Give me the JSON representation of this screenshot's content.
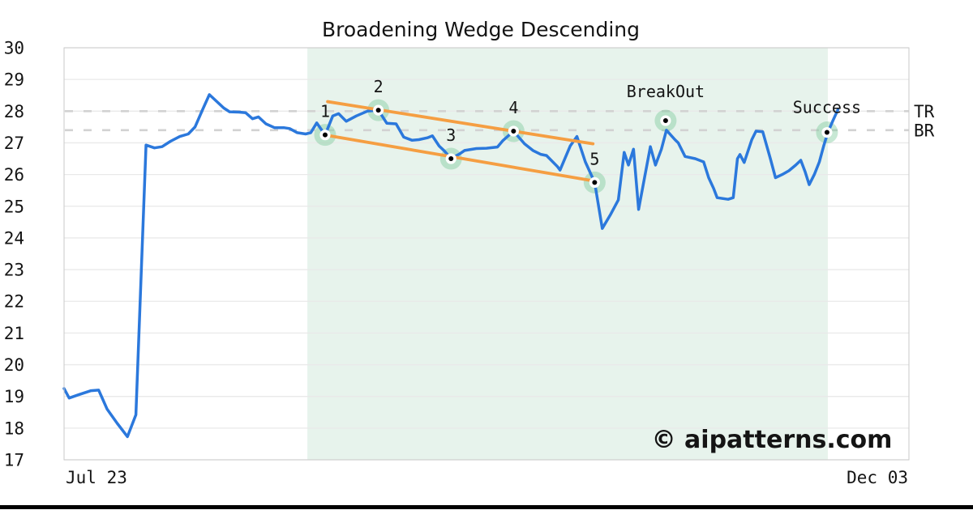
{
  "watermark": "© aipatterns.com",
  "chart_data": {
    "type": "line",
    "title": "Broadening Wedge Descending",
    "ylim": [
      17,
      30
    ],
    "yticks": [
      17,
      18,
      19,
      20,
      21,
      22,
      23,
      24,
      25,
      26,
      27,
      28,
      29,
      30
    ],
    "grid": "horizontal",
    "x_axis": {
      "start_label": "Jul 23",
      "end_label": "Dec 03"
    },
    "levels": [
      {
        "label": "TR",
        "value": 28.0
      },
      {
        "label": "BR",
        "value": 27.4
      }
    ],
    "pattern_zone": {
      "start": 28.8,
      "end": 90.4
    },
    "trendlines": [
      {
        "name": "upper-trendline",
        "from": [
          31.2,
          28.3
        ],
        "to": [
          62.6,
          26.97
        ]
      },
      {
        "name": "lower-trendline",
        "from": [
          30.8,
          27.25
        ],
        "to": [
          62.2,
          25.82
        ]
      }
    ],
    "markers": [
      {
        "label": "1",
        "pos": 30.9,
        "value": 27.25,
        "label_dy": -22
      },
      {
        "label": "2",
        "pos": 37.2,
        "value": 28.03,
        "label_dy": -22
      },
      {
        "label": "3",
        "pos": 45.8,
        "value": 26.5,
        "label_dy": -22
      },
      {
        "label": "4",
        "pos": 53.2,
        "value": 27.37,
        "label_dy": -22
      },
      {
        "label": "5",
        "pos": 62.8,
        "value": 25.75,
        "label_dy": -22
      },
      {
        "label": "BreakOut",
        "pos": 71.2,
        "value": 27.7,
        "label_dy": -29
      },
      {
        "label": "Success",
        "pos": 90.3,
        "value": 27.33,
        "label_dy": -24
      }
    ],
    "series": [
      {
        "name": "price",
        "points": [
          [
            0.0,
            19.25
          ],
          [
            0.6,
            18.95
          ],
          [
            1.7,
            19.05
          ],
          [
            3.2,
            19.18
          ],
          [
            4.1,
            19.2
          ],
          [
            5.1,
            18.6
          ],
          [
            6.3,
            18.15
          ],
          [
            7.5,
            17.73
          ],
          [
            8.5,
            18.42
          ],
          [
            9.7,
            26.93
          ],
          [
            10.7,
            26.84
          ],
          [
            11.6,
            26.88
          ],
          [
            12.6,
            27.05
          ],
          [
            13.7,
            27.2
          ],
          [
            14.7,
            27.28
          ],
          [
            15.5,
            27.5
          ],
          [
            16.4,
            28.05
          ],
          [
            17.2,
            28.52
          ],
          [
            18.1,
            28.3
          ],
          [
            18.9,
            28.1
          ],
          [
            19.6,
            27.98
          ],
          [
            20.7,
            27.97
          ],
          [
            21.5,
            27.95
          ],
          [
            22.3,
            27.76
          ],
          [
            23.0,
            27.82
          ],
          [
            23.9,
            27.6
          ],
          [
            24.9,
            27.48
          ],
          [
            26.0,
            27.48
          ],
          [
            26.7,
            27.45
          ],
          [
            27.6,
            27.32
          ],
          [
            28.6,
            27.28
          ],
          [
            29.2,
            27.32
          ],
          [
            29.9,
            27.63
          ],
          [
            30.9,
            27.25
          ],
          [
            31.8,
            27.85
          ],
          [
            32.5,
            27.92
          ],
          [
            33.4,
            27.68
          ],
          [
            34.6,
            27.85
          ],
          [
            35.9,
            28.0
          ],
          [
            37.2,
            28.03
          ],
          [
            38.2,
            27.62
          ],
          [
            39.3,
            27.6
          ],
          [
            40.2,
            27.18
          ],
          [
            41.2,
            27.08
          ],
          [
            42.0,
            27.1
          ],
          [
            43.0,
            27.16
          ],
          [
            43.6,
            27.22
          ],
          [
            44.4,
            26.9
          ],
          [
            45.0,
            26.75
          ],
          [
            45.8,
            26.5
          ],
          [
            46.8,
            26.65
          ],
          [
            47.4,
            26.76
          ],
          [
            48.8,
            26.82
          ],
          [
            50.0,
            26.83
          ],
          [
            51.3,
            26.87
          ],
          [
            51.9,
            27.06
          ],
          [
            53.2,
            27.37
          ],
          [
            54.5,
            26.97
          ],
          [
            55.5,
            26.76
          ],
          [
            56.4,
            26.64
          ],
          [
            57.1,
            26.6
          ],
          [
            58.4,
            26.25
          ],
          [
            58.7,
            26.14
          ],
          [
            59.9,
            26.9
          ],
          [
            60.7,
            27.2
          ],
          [
            61.7,
            26.4
          ],
          [
            62.8,
            25.75
          ],
          [
            63.7,
            24.3
          ],
          [
            64.7,
            24.75
          ],
          [
            65.6,
            25.2
          ],
          [
            66.3,
            26.7
          ],
          [
            66.8,
            26.3
          ],
          [
            67.4,
            26.8
          ],
          [
            68.0,
            24.9
          ],
          [
            68.7,
            25.9
          ],
          [
            69.4,
            26.88
          ],
          [
            70.0,
            26.3
          ],
          [
            70.7,
            26.8
          ],
          [
            71.3,
            27.4
          ],
          [
            72.3,
            27.1
          ],
          [
            72.7,
            27.0
          ],
          [
            73.5,
            26.57
          ],
          [
            74.7,
            26.5
          ],
          [
            75.7,
            26.4
          ],
          [
            76.3,
            25.9
          ],
          [
            76.9,
            25.55
          ],
          [
            77.3,
            25.27
          ],
          [
            78.6,
            25.22
          ],
          [
            79.2,
            25.27
          ],
          [
            79.7,
            26.5
          ],
          [
            80.0,
            26.63
          ],
          [
            80.5,
            26.38
          ],
          [
            81.4,
            27.1
          ],
          [
            81.9,
            27.37
          ],
          [
            82.7,
            27.35
          ],
          [
            83.6,
            26.5
          ],
          [
            84.2,
            25.9
          ],
          [
            85.0,
            26.0
          ],
          [
            85.8,
            26.12
          ],
          [
            86.6,
            26.3
          ],
          [
            87.2,
            26.45
          ],
          [
            87.7,
            26.1
          ],
          [
            88.2,
            25.68
          ],
          [
            88.8,
            26.0
          ],
          [
            89.4,
            26.4
          ],
          [
            89.9,
            26.9
          ],
          [
            90.4,
            27.33
          ],
          [
            91.0,
            27.7
          ],
          [
            91.6,
            28.05
          ]
        ]
      }
    ],
    "colors": {
      "line": "#2b78dc",
      "trendline": "#f59e42",
      "zone": "#e7f3ec",
      "halo": "rgba(122,199,153,0.42)",
      "dashed_level": "#d2d2d2",
      "grid": "#e9e9e9",
      "spine": "#c9c9c9",
      "marker_dot": "#000000",
      "watermark": "#c6c9f0",
      "footer_bar": "#000000"
    }
  }
}
